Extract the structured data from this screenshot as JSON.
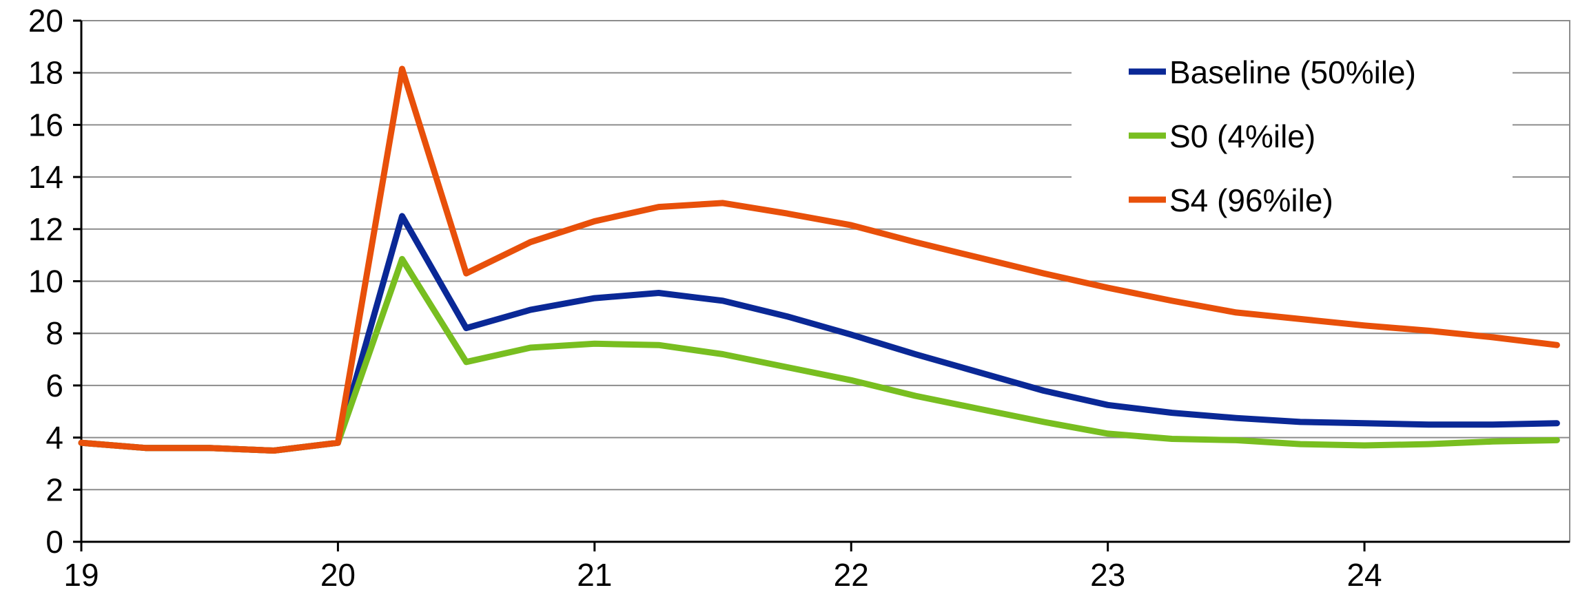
{
  "chart_data": {
    "type": "line",
    "title": "",
    "xlabel": "",
    "ylabel": "",
    "xlim": [
      19,
      24.8
    ],
    "ylim": [
      0,
      20
    ],
    "x_ticks": [
      19,
      20,
      21,
      22,
      23,
      24
    ],
    "y_ticks": [
      0,
      2,
      4,
      6,
      8,
      10,
      12,
      14,
      16,
      18,
      20
    ],
    "x_tick_labels": [
      "19",
      "20",
      "21",
      "22",
      "23",
      "24"
    ],
    "y_tick_labels": [
      "0",
      "2",
      "4",
      "6",
      "8",
      "10",
      "12",
      "14",
      "16",
      "18",
      "20"
    ],
    "grid": true,
    "legend_position": "top-right",
    "x": [
      19,
      19.25,
      19.5,
      19.75,
      20,
      20.25,
      20.5,
      20.75,
      21,
      21.25,
      21.5,
      21.75,
      22,
      22.25,
      22.5,
      22.75,
      23,
      23.25,
      23.5,
      23.75,
      24,
      24.25,
      24.5,
      24.75
    ],
    "series": [
      {
        "name": "Baseline (50%ile)",
        "color": "#0a2896",
        "values": [
          3.8,
          3.6,
          3.6,
          3.5,
          3.8,
          12.5,
          8.2,
          8.9,
          9.35,
          9.55,
          9.25,
          8.65,
          7.95,
          7.2,
          6.5,
          5.8,
          5.25,
          4.95,
          4.75,
          4.6,
          4.55,
          4.5,
          4.5,
          4.55
        ]
      },
      {
        "name": "S0 (4%ile)",
        "color": "#78be20",
        "values": [
          3.8,
          3.6,
          3.6,
          3.5,
          3.8,
          10.85,
          6.9,
          7.45,
          7.6,
          7.55,
          7.2,
          6.7,
          6.2,
          5.6,
          5.1,
          4.6,
          4.15,
          3.95,
          3.9,
          3.75,
          3.7,
          3.75,
          3.85,
          3.9
        ]
      },
      {
        "name": "S4 (96%ile)",
        "color": "#e8500a",
        "values": [
          3.8,
          3.6,
          3.6,
          3.5,
          3.8,
          18.15,
          10.3,
          11.5,
          12.3,
          12.85,
          13.0,
          12.6,
          12.15,
          11.5,
          10.9,
          10.3,
          9.75,
          9.25,
          8.8,
          8.55,
          8.3,
          8.1,
          7.85,
          7.55
        ]
      }
    ]
  }
}
